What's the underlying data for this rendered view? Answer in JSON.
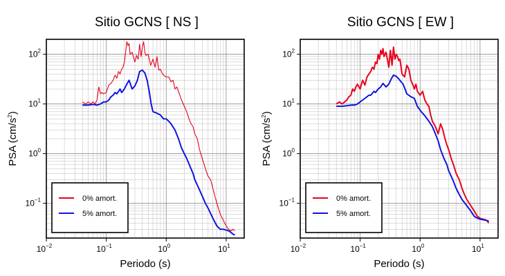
{
  "chart_data": [
    {
      "type": "line",
      "title": "Sitio GCNS [ NS ]",
      "xlabel": "Periodo (s)",
      "ylabel_main": "PSA (cm/s",
      "ylabel_sup": "2",
      "ylabel_close": ")",
      "x_scale": "log",
      "y_scale": "log",
      "xlim": [
        0.01,
        20
      ],
      "ylim": [
        0.02,
        200
      ],
      "grid": true,
      "legend_position": "bottom-left",
      "x_ticks": [
        {
          "value": 0.01,
          "base": "10",
          "exp": "−2"
        },
        {
          "value": 0.1,
          "base": "10",
          "exp": "−1"
        },
        {
          "value": 1,
          "base": "10",
          "exp": "0"
        },
        {
          "value": 10,
          "base": "10",
          "exp": "1"
        }
      ],
      "y_ticks": [
        {
          "value": 0.1,
          "base": "10",
          "exp": "−1"
        },
        {
          "value": 1,
          "base": "10",
          "exp": "0"
        },
        {
          "value": 10,
          "base": "10",
          "exp": "1"
        },
        {
          "value": 100,
          "base": "10",
          "exp": "2"
        }
      ],
      "series": [
        {
          "name": "0% amort.",
          "color": "#e8001c",
          "x": [
            0.04,
            0.045,
            0.05,
            0.055,
            0.06,
            0.065,
            0.07,
            0.075,
            0.08,
            0.085,
            0.09,
            0.1,
            0.11,
            0.12,
            0.13,
            0.14,
            0.15,
            0.16,
            0.17,
            0.18,
            0.19,
            0.2,
            0.21,
            0.22,
            0.23,
            0.24,
            0.25,
            0.27,
            0.29,
            0.3,
            0.32,
            0.34,
            0.36,
            0.38,
            0.4,
            0.42,
            0.44,
            0.46,
            0.5,
            0.55,
            0.6,
            0.65,
            0.7,
            0.75,
            0.8,
            0.85,
            0.9,
            1.0,
            1.1,
            1.2,
            1.3,
            1.4,
            1.5,
            1.6,
            1.8,
            2.0,
            2.2,
            2.4,
            2.6,
            2.8,
            3.0,
            3.3,
            3.6,
            4.0,
            4.5,
            5.0,
            5.5,
            6.0,
            7.0,
            8.0,
            9.0,
            10.0,
            11.0,
            12.0,
            13.0,
            14.0
          ],
          "y": [
            11,
            10,
            11,
            10,
            11,
            10,
            12,
            22,
            16,
            17,
            16,
            17,
            24,
            26,
            30,
            38,
            33,
            45,
            40,
            50,
            55,
            68,
            110,
            180,
            150,
            165,
            100,
            110,
            80,
            70,
            95,
            80,
            160,
            90,
            140,
            180,
            110,
            95,
            100,
            60,
            80,
            55,
            90,
            48,
            50,
            42,
            38,
            35,
            35,
            28,
            30,
            20,
            22,
            18,
            12,
            9,
            7,
            5,
            4,
            3.5,
            2.5,
            2,
            1.2,
            0.8,
            0.5,
            0.35,
            0.3,
            0.2,
            0.1,
            0.06,
            0.045,
            0.035,
            0.03,
            0.028,
            0.03,
            0.028
          ]
        },
        {
          "name": "5% amort.",
          "color": "#0d13e0",
          "x": [
            0.04,
            0.05,
            0.06,
            0.07,
            0.08,
            0.09,
            0.1,
            0.11,
            0.12,
            0.13,
            0.14,
            0.15,
            0.17,
            0.18,
            0.2,
            0.22,
            0.24,
            0.27,
            0.3,
            0.33,
            0.36,
            0.4,
            0.44,
            0.48,
            0.52,
            0.56,
            0.6,
            0.7,
            0.8,
            0.9,
            1.0,
            1.1,
            1.2,
            1.4,
            1.6,
            1.8,
            2.0,
            2.2,
            2.5,
            2.8,
            3.0,
            3.5,
            4.0,
            4.5,
            5.0,
            6.0,
            7.0,
            8.0,
            9.0,
            10.0,
            11.0,
            12.0,
            13.0,
            14.0
          ],
          "y": [
            9.5,
            9.5,
            9.8,
            9.5,
            10,
            11,
            11,
            12,
            14,
            15,
            17,
            16,
            20,
            17,
            20,
            25,
            30,
            20,
            23,
            30,
            45,
            48,
            42,
            30,
            18,
            10,
            7,
            6.5,
            6,
            5,
            5,
            4.5,
            4,
            3,
            2,
            1.3,
            1,
            0.8,
            0.55,
            0.4,
            0.3,
            0.2,
            0.14,
            0.1,
            0.08,
            0.05,
            0.035,
            0.03,
            0.03,
            0.029,
            0.028,
            0.026,
            0.024,
            0.023
          ]
        }
      ]
    },
    {
      "type": "line",
      "title": "Sitio GCNS [ EW ]",
      "xlabel": "Periodo (s)",
      "ylabel_main": "PSA (cm/s",
      "ylabel_sup": "2",
      "ylabel_close": ")",
      "x_scale": "log",
      "y_scale": "log",
      "xlim": [
        0.01,
        20
      ],
      "ylim": [
        0.02,
        200
      ],
      "grid": true,
      "legend_position": "bottom-left",
      "x_ticks": [
        {
          "value": 0.01,
          "base": "10",
          "exp": "−2"
        },
        {
          "value": 0.1,
          "base": "10",
          "exp": "−1"
        },
        {
          "value": 1,
          "base": "10",
          "exp": "0"
        },
        {
          "value": 10,
          "base": "10",
          "exp": "1"
        }
      ],
      "y_ticks": [
        {
          "value": 0.1,
          "base": "10",
          "exp": "−1"
        },
        {
          "value": 1,
          "base": "10",
          "exp": "0"
        },
        {
          "value": 10,
          "base": "10",
          "exp": "1"
        },
        {
          "value": 100,
          "base": "10",
          "exp": "2"
        }
      ],
      "series": [
        {
          "name": "0% amort.",
          "color": "#e8001c",
          "x": [
            0.04,
            0.045,
            0.05,
            0.055,
            0.06,
            0.065,
            0.07,
            0.075,
            0.08,
            0.085,
            0.09,
            0.1,
            0.11,
            0.12,
            0.13,
            0.14,
            0.15,
            0.16,
            0.17,
            0.18,
            0.19,
            0.2,
            0.21,
            0.22,
            0.23,
            0.24,
            0.25,
            0.27,
            0.29,
            0.3,
            0.32,
            0.34,
            0.36,
            0.38,
            0.4,
            0.42,
            0.44,
            0.46,
            0.5,
            0.55,
            0.6,
            0.65,
            0.7,
            0.75,
            0.8,
            0.85,
            0.9,
            1.0,
            1.1,
            1.2,
            1.3,
            1.4,
            1.5,
            1.6,
            1.8,
            2.0,
            2.2,
            2.4,
            2.6,
            2.8,
            3.0,
            3.3,
            3.6,
            4.0,
            4.5,
            5.0,
            5.5,
            6.0,
            7.0,
            8.0,
            9.0,
            10.0,
            11.0,
            12.0,
            13.0,
            14.0
          ],
          "y": [
            10,
            11,
            10,
            11,
            12,
            14,
            15,
            20,
            18,
            22,
            25,
            20,
            30,
            24,
            35,
            40,
            45,
            55,
            50,
            70,
            65,
            100,
            80,
            120,
            100,
            130,
            90,
            110,
            70,
            55,
            120,
            60,
            140,
            80,
            100,
            90,
            75,
            80,
            40,
            35,
            60,
            50,
            30,
            25,
            20,
            25,
            18,
            15,
            18,
            12,
            10,
            9,
            6,
            4.5,
            3.5,
            2.5,
            4,
            3,
            2,
            1.5,
            1.2,
            0.8,
            0.6,
            0.4,
            0.3,
            0.2,
            0.15,
            0.12,
            0.09,
            0.07,
            0.055,
            0.05,
            0.048,
            0.047,
            0.045,
            0.04
          ]
        },
        {
          "name": "5% amort.",
          "color": "#0d13e0",
          "x": [
            0.04,
            0.05,
            0.06,
            0.07,
            0.08,
            0.09,
            0.1,
            0.11,
            0.12,
            0.13,
            0.14,
            0.15,
            0.17,
            0.18,
            0.2,
            0.22,
            0.24,
            0.27,
            0.3,
            0.33,
            0.36,
            0.4,
            0.44,
            0.48,
            0.52,
            0.56,
            0.6,
            0.7,
            0.8,
            0.9,
            1.0,
            1.1,
            1.2,
            1.4,
            1.6,
            1.8,
            2.0,
            2.2,
            2.5,
            2.8,
            3.0,
            3.5,
            4.0,
            4.5,
            5.0,
            6.0,
            7.0,
            8.0,
            9.0,
            10.0,
            11.0,
            12.0,
            13.0,
            14.0
          ],
          "y": [
            9,
            9,
            9.2,
            9.5,
            9.5,
            10,
            11,
            12,
            13,
            14,
            15,
            15,
            18,
            17,
            20,
            22,
            26,
            22,
            25,
            32,
            38,
            36,
            32,
            28,
            25,
            20,
            16,
            14,
            13,
            9,
            7.5,
            6.5,
            5.8,
            4.5,
            3.5,
            2.5,
            1.8,
            1.2,
            0.8,
            0.6,
            0.45,
            0.3,
            0.2,
            0.15,
            0.12,
            0.09,
            0.07,
            0.055,
            0.05,
            0.048,
            0.047,
            0.046,
            0.045,
            0.044
          ]
        }
      ]
    }
  ]
}
